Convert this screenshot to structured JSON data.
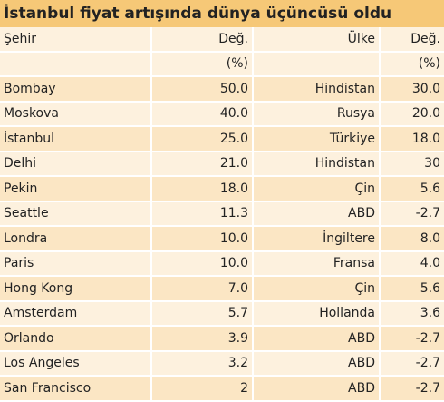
{
  "header": {
    "title": "İstanbul fiyat artışında dünya üçüncüsü oldu"
  },
  "table": {
    "columns": [
      "Şehir",
      "Değ.",
      "Ülke",
      "Değ."
    ],
    "units": [
      "(%)",
      "(%)"
    ],
    "rows": [
      [
        "Bombay",
        "50.0",
        "Hindistan",
        "30.0"
      ],
      [
        "Moskova",
        "40.0",
        "Rusya",
        "20.0"
      ],
      [
        "İstanbul",
        "25.0",
        "Türkiye",
        "18.0"
      ],
      [
        "Delhi",
        "21.0",
        "Hindistan",
        "30"
      ],
      [
        "Pekin",
        "18.0",
        "Çin",
        "5.6"
      ],
      [
        "Seattle",
        "11.3",
        "ABD",
        "-2.7"
      ],
      [
        "Londra",
        "10.0",
        "İngiltere",
        "8.0"
      ],
      [
        "Paris",
        "10.0",
        "Fransa",
        "4.0"
      ],
      [
        "Hong Kong",
        "7.0",
        "Çin",
        "5.6"
      ],
      [
        "Amsterdam",
        "5.7",
        "Hollanda",
        "3.6"
      ],
      [
        "Orlando",
        "3.9",
        "ABD",
        "-2.7"
      ],
      [
        "Los Angeles",
        "3.2",
        "ABD",
        "-2.7"
      ],
      [
        "San Francisco",
        "2",
        "ABD",
        "-2.7"
      ]
    ]
  }
}
